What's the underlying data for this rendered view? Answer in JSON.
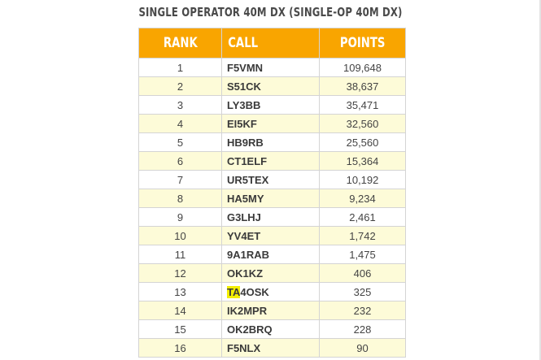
{
  "title": "SINGLE OPERATOR 40M DX (SINGLE-OP 40M DX)",
  "table": {
    "headers": {
      "rank": "RANK",
      "call": "CALL",
      "points": "POINTS"
    },
    "rows": [
      {
        "rank": "1",
        "call": "F5VMN",
        "points": "109,648"
      },
      {
        "rank": "2",
        "call": "S51CK",
        "points": "38,637"
      },
      {
        "rank": "3",
        "call": "LY3BB",
        "points": "35,471"
      },
      {
        "rank": "4",
        "call": "EI5KF",
        "points": "32,560"
      },
      {
        "rank": "5",
        "call": "HB9RB",
        "points": "25,560"
      },
      {
        "rank": "6",
        "call": "CT1ELF",
        "points": "15,364"
      },
      {
        "rank": "7",
        "call": "UR5TEX",
        "points": "10,192"
      },
      {
        "rank": "8",
        "call": "HA5MY",
        "points": "9,234"
      },
      {
        "rank": "9",
        "call": "G3LHJ",
        "points": "2,461"
      },
      {
        "rank": "10",
        "call": "YV4ET",
        "points": "1,742"
      },
      {
        "rank": "11",
        "call": "9A1RAB",
        "points": "1,475"
      },
      {
        "rank": "12",
        "call": "OK1KZ",
        "points": "406"
      },
      {
        "rank": "13",
        "call": "TA4OSK",
        "call_highlight": "TA",
        "call_rest": "4OSK",
        "points": "325"
      },
      {
        "rank": "14",
        "call": "IK2MPR",
        "points": "232"
      },
      {
        "rank": "15",
        "call": "OK2BRQ",
        "points": "228"
      },
      {
        "rank": "16",
        "call": "F5NLX",
        "points": "90"
      }
    ]
  },
  "colors": {
    "header_bg": "#f9a500",
    "header_text": "#ffffff",
    "row_alt_bg": "#fdfbd8",
    "row_bg": "#ffffff",
    "search_highlight": "#f2ee00",
    "border": "#d4d4d4"
  }
}
